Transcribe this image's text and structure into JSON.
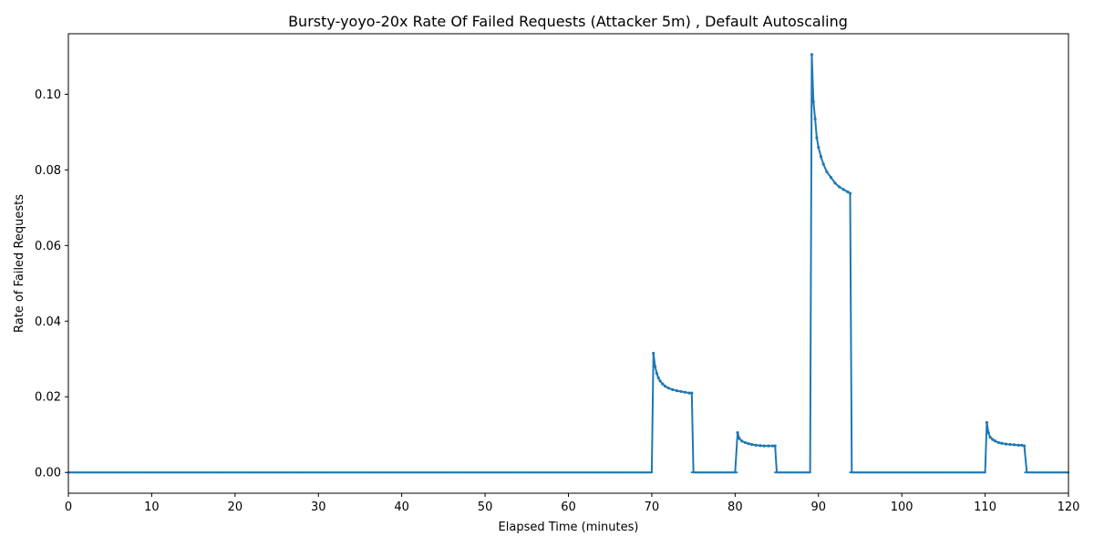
{
  "chart_data": {
    "type": "line",
    "title": "Bursty-yoyo-20x Rate Of Failed Requests (Attacker 5m) , Default Autoscaling",
    "xlabel": "Elapsed Time (minutes)",
    "ylabel": "Rate of Failed Requests",
    "xlim": [
      0,
      120
    ],
    "ylim": [
      -0.0055,
      0.116
    ],
    "x_ticks": [
      0,
      10,
      20,
      30,
      40,
      50,
      60,
      70,
      80,
      90,
      100,
      110,
      120
    ],
    "y_ticks": [
      0.0,
      0.02,
      0.04,
      0.06,
      0.08,
      0.1
    ],
    "y_tick_labels": [
      "0.00",
      "0.02",
      "0.04",
      "0.06",
      "0.08",
      "0.10"
    ],
    "grid": false,
    "legend": "none",
    "line_color": "#1f77b4",
    "baseline": {
      "value": 0.0,
      "x_start": 0,
      "x_end": 120
    },
    "series": [
      {
        "points": [
          [
            0,
            0
          ],
          [
            70.0,
            0
          ],
          [
            70.2,
            0.0315
          ],
          [
            70.4,
            0.028
          ],
          [
            70.6,
            0.0262
          ],
          [
            70.8,
            0.025
          ],
          [
            71.0,
            0.0242
          ],
          [
            71.3,
            0.0234
          ],
          [
            71.6,
            0.0228
          ],
          [
            72.0,
            0.0223
          ],
          [
            72.5,
            0.0219
          ],
          [
            73.0,
            0.0216
          ],
          [
            73.5,
            0.0214
          ],
          [
            74.0,
            0.0212
          ],
          [
            74.5,
            0.021
          ],
          [
            74.8,
            0.021
          ],
          [
            75.0,
            0
          ],
          [
            80.0,
            0
          ],
          [
            80.3,
            0.0105
          ],
          [
            80.5,
            0.009
          ],
          [
            80.8,
            0.0083
          ],
          [
            81.2,
            0.0079
          ],
          [
            81.6,
            0.0076
          ],
          [
            82.0,
            0.0074
          ],
          [
            82.5,
            0.0072
          ],
          [
            83.0,
            0.0071
          ],
          [
            83.5,
            0.007
          ],
          [
            84.0,
            0.007
          ],
          [
            84.5,
            0.007
          ],
          [
            84.8,
            0.007
          ],
          [
            85.0,
            0
          ],
          [
            89.0,
            0
          ],
          [
            89.2,
            0.1105
          ],
          [
            89.4,
            0.098
          ],
          [
            89.6,
            0.0935
          ],
          [
            89.8,
            0.0885
          ],
          [
            90.0,
            0.086
          ],
          [
            90.3,
            0.0835
          ],
          [
            90.6,
            0.0815
          ],
          [
            91.0,
            0.0795
          ],
          [
            91.5,
            0.078
          ],
          [
            92.0,
            0.0765
          ],
          [
            92.5,
            0.0755
          ],
          [
            93.0,
            0.0748
          ],
          [
            93.5,
            0.0742
          ],
          [
            93.8,
            0.0738
          ],
          [
            94.0,
            0
          ],
          [
            110.0,
            0
          ],
          [
            110.2,
            0.0132
          ],
          [
            110.4,
            0.0105
          ],
          [
            110.6,
            0.0093
          ],
          [
            110.9,
            0.0087
          ],
          [
            111.2,
            0.0083
          ],
          [
            111.6,
            0.0079
          ],
          [
            112.0,
            0.0077
          ],
          [
            112.5,
            0.0075
          ],
          [
            113.0,
            0.0074
          ],
          [
            113.5,
            0.0073
          ],
          [
            114.0,
            0.0072
          ],
          [
            114.4,
            0.0072
          ],
          [
            114.7,
            0.007
          ],
          [
            115.0,
            0
          ],
          [
            120,
            0
          ]
        ]
      }
    ]
  }
}
